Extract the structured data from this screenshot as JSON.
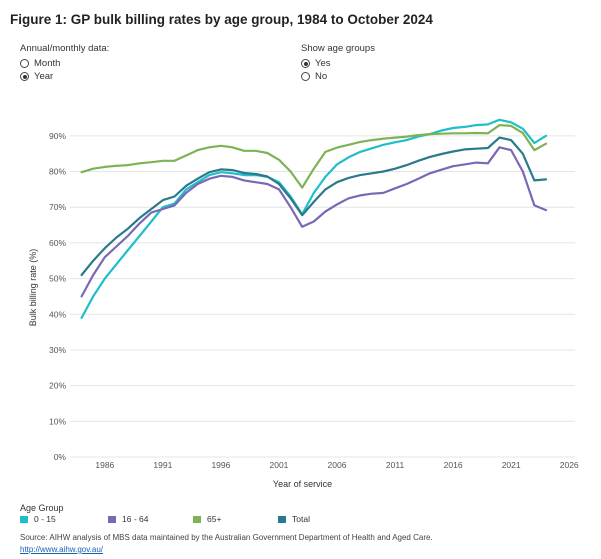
{
  "figure_title": "Figure 1: GP bulk billing rates by age group, 1984 to October 2024",
  "controls": {
    "frequency": {
      "title": "Annual/monthly data:",
      "options": [
        {
          "label": "Month",
          "checked": false
        },
        {
          "label": "Year",
          "checked": true
        }
      ]
    },
    "age_groups": {
      "title": "Show age groups",
      "options": [
        {
          "label": "Yes",
          "checked": true
        },
        {
          "label": "No",
          "checked": false
        }
      ]
    }
  },
  "legend": {
    "title": "Age Group",
    "items": [
      {
        "label": "0 - 15",
        "color": "#1fbecb"
      },
      {
        "label": "16 - 64",
        "color": "#7b68b5"
      },
      {
        "label": "65+",
        "color": "#7db353"
      },
      {
        "label": "Total",
        "color": "#2a7a8c"
      }
    ]
  },
  "source": "Source: AIHW analysis of MBS data maintained by the Australian Government Department of Health and Aged Care.",
  "source_link": "http://www.aihw.gov.au/",
  "chart_data": {
    "type": "line",
    "xlabel": "Year of service",
    "ylabel": "Bulk billing rate (%)",
    "xlim": [
      1983,
      2026.5
    ],
    "ylim": [
      0,
      95
    ],
    "x_ticks": [
      1986,
      1991,
      1996,
      2001,
      2006,
      2011,
      2016,
      2021,
      2026
    ],
    "y_ticks": [
      0,
      10,
      20,
      30,
      40,
      50,
      60,
      70,
      80,
      90
    ],
    "y_tick_labels": [
      "0%",
      "10%",
      "20%",
      "30%",
      "40%",
      "50%",
      "60%",
      "70%",
      "80%",
      "90%"
    ],
    "grid": true,
    "series": [
      {
        "name": "0 - 15",
        "color": "#1fbecb",
        "x": [
          1984,
          1985,
          1986,
          1987,
          1988,
          1989,
          1990,
          1991,
          1992,
          1993,
          1994,
          1995,
          1996,
          1997,
          1998,
          1999,
          2000,
          2001,
          2002,
          2003,
          2004,
          2005,
          2006,
          2007,
          2008,
          2009,
          2010,
          2011,
          2012,
          2013,
          2014,
          2015,
          2016,
          2017,
          2018,
          2019,
          2020,
          2021,
          2022,
          2023,
          2024
        ],
        "y": [
          39,
          45,
          50,
          54,
          58,
          62,
          66,
          70,
          71,
          75,
          77,
          79,
          79.8,
          79.5,
          79,
          79,
          78.5,
          77,
          73,
          68,
          74,
          78.5,
          82,
          84,
          85.5,
          86.5,
          87.5,
          88.2,
          88.8,
          89.8,
          90.5,
          91.5,
          92.2,
          92.5,
          93,
          93.2,
          94.5,
          93.8,
          92,
          88,
          90
        ]
      },
      {
        "name": "16 - 64",
        "color": "#7b68b5",
        "x": [
          1984,
          1985,
          1986,
          1987,
          1988,
          1989,
          1990,
          1991,
          1992,
          1993,
          1994,
          1995,
          1996,
          1997,
          1998,
          1999,
          2000,
          2001,
          2002,
          2003,
          2004,
          2005,
          2006,
          2007,
          2008,
          2009,
          2010,
          2011,
          2012,
          2013,
          2014,
          2015,
          2016,
          2017,
          2018,
          2019,
          2020,
          2021,
          2022,
          2023,
          2024
        ],
        "y": [
          45,
          51,
          56,
          59,
          62,
          65.5,
          68.5,
          69.5,
          70.5,
          74,
          76.5,
          78,
          78.8,
          78.5,
          77.5,
          77,
          76.5,
          75,
          70,
          64.5,
          66,
          68.8,
          70.8,
          72.5,
          73.3,
          73.8,
          74,
          75.3,
          76.5,
          78,
          79.5,
          80.5,
          81.5,
          82,
          82.5,
          82.3,
          86.8,
          86,
          80,
          70.5,
          69.2
        ]
      },
      {
        "name": "65+",
        "color": "#7db353",
        "x": [
          1984,
          1985,
          1986,
          1987,
          1988,
          1989,
          1990,
          1991,
          1992,
          1993,
          1994,
          1995,
          1996,
          1997,
          1998,
          1999,
          2000,
          2001,
          2002,
          2003,
          2004,
          2005,
          2006,
          2007,
          2008,
          2009,
          2010,
          2011,
          2012,
          2013,
          2014,
          2015,
          2016,
          2017,
          2018,
          2019,
          2020,
          2021,
          2022,
          2023,
          2024
        ],
        "y": [
          79.8,
          80.8,
          81.3,
          81.6,
          81.8,
          82.3,
          82.6,
          83,
          83,
          84.5,
          86,
          86.8,
          87.2,
          86.8,
          85.8,
          85.8,
          85.2,
          83.3,
          80,
          75.5,
          80.8,
          85.5,
          86.7,
          87.5,
          88.3,
          88.8,
          89.2,
          89.5,
          89.8,
          90.2,
          90.5,
          90.6,
          90.7,
          90.7,
          90.8,
          90.7,
          93,
          92.8,
          90.8,
          86,
          87.8
        ]
      },
      {
        "name": "Total",
        "color": "#2a7a8c",
        "x": [
          1984,
          1985,
          1986,
          1987,
          1988,
          1989,
          1990,
          1991,
          1992,
          1993,
          1994,
          1995,
          1996,
          1997,
          1998,
          1999,
          2000,
          2001,
          2002,
          2003,
          2004,
          2005,
          2006,
          2007,
          2008,
          2009,
          2010,
          2011,
          2012,
          2013,
          2014,
          2015,
          2016,
          2017,
          2018,
          2019,
          2020,
          2021,
          2022,
          2023,
          2024
        ],
        "y": [
          51,
          55,
          58.5,
          61.5,
          64,
          67,
          69.5,
          72,
          73,
          76,
          78,
          79.8,
          80.6,
          80.4,
          79.6,
          79.3,
          78.6,
          76.5,
          72.5,
          67.8,
          71.5,
          75,
          77,
          78.2,
          79,
          79.5,
          80,
          80.8,
          81.8,
          83,
          84.1,
          84.9,
          85.6,
          86.2,
          86.4,
          86.6,
          89.5,
          88.8,
          85,
          77.5,
          77.8
        ]
      }
    ]
  }
}
